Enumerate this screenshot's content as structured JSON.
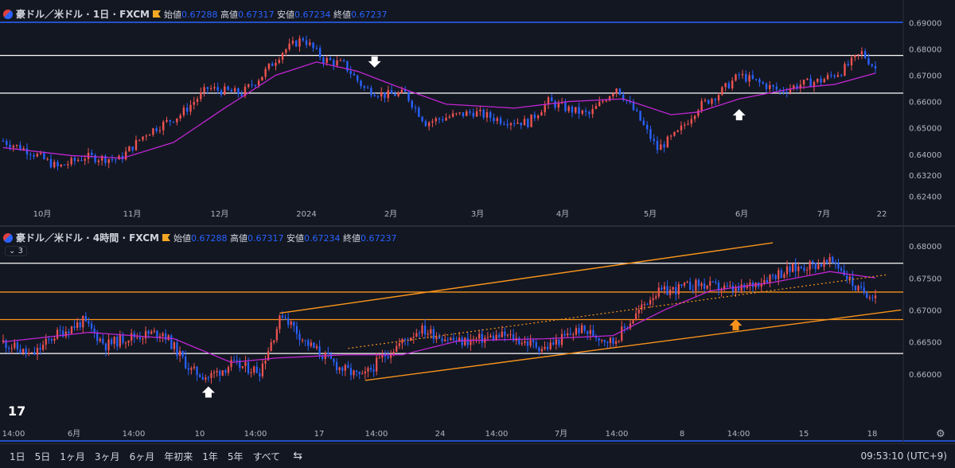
{
  "panels": [
    {
      "symbol": "豪ドル／米ドル · 1日 · FXCM",
      "labels": {
        "o": "始値",
        "h": "高値",
        "l": "安値",
        "c": "終値"
      },
      "open": "0.67288",
      "high": "0.67317",
      "low": "0.67234",
      "close": "0.67237"
    },
    {
      "symbol": "豪ドル／米ドル · 4時間 · FXCM",
      "labels": {
        "o": "始値",
        "h": "高値",
        "l": "安値",
        "c": "終値"
      },
      "open": "0.67288",
      "high": "0.67317",
      "low": "0.67234",
      "close": "0.67237"
    }
  ],
  "collapse_label": "3",
  "timeframes": [
    "1日",
    "5日",
    "1ヶ月",
    "3ヶ月",
    "6ヶ月",
    "年初来",
    "1年",
    "5年",
    "すべて"
  ],
  "clock": "09:53:10 (UTC+9)",
  "colors": {
    "up": "#ef5350",
    "down": "#2962ff",
    "ma": "#c026d3",
    "level": "#ffffff",
    "orange": "#f7931a"
  },
  "chart_data": [
    {
      "type": "candlestick",
      "title": "豪ドル／米ドル · 1日 · FXCM",
      "x_ticks": [
        "10月",
        "11月",
        "12月",
        "2024",
        "2月",
        "3月",
        "4月",
        "5月",
        "6月",
        "7月",
        "22"
      ],
      "y_ticks": [
        0.69,
        0.68,
        0.67,
        0.66,
        0.65,
        0.64,
        0.632,
        0.624
      ],
      "ylim": [
        0.6215,
        0.6925
      ],
      "levels": [
        0.6775,
        0.6632
      ],
      "close_path": [
        [
          0,
          0.645
        ],
        [
          8,
          0.641
        ],
        [
          16,
          0.635
        ],
        [
          24,
          0.639
        ],
        [
          34,
          0.638
        ],
        [
          42,
          0.648
        ],
        [
          52,
          0.655
        ],
        [
          60,
          0.665
        ],
        [
          70,
          0.663
        ],
        [
          76,
          0.67
        ],
        [
          82,
          0.679
        ],
        [
          88,
          0.684
        ],
        [
          94,
          0.676
        ],
        [
          100,
          0.674
        ],
        [
          106,
          0.665
        ],
        [
          112,
          0.6625
        ],
        [
          118,
          0.663
        ],
        [
          124,
          0.652
        ],
        [
          130,
          0.654
        ],
        [
          138,
          0.656
        ],
        [
          146,
          0.653
        ],
        [
          154,
          0.652
        ],
        [
          160,
          0.66
        ],
        [
          166,
          0.657
        ],
        [
          172,
          0.655
        ],
        [
          180,
          0.6655
        ],
        [
          186,
          0.655
        ],
        [
          192,
          0.642
        ],
        [
          198,
          0.648
        ],
        [
          204,
          0.658
        ],
        [
          210,
          0.663
        ],
        [
          216,
          0.67
        ],
        [
          222,
          0.667
        ],
        [
          228,
          0.664
        ],
        [
          234,
          0.6665
        ],
        [
          240,
          0.668
        ],
        [
          246,
          0.6715
        ],
        [
          252,
          0.6785
        ],
        [
          256,
          0.6725
        ]
      ],
      "ma_path": [
        [
          0,
          0.6425
        ],
        [
          20,
          0.6395
        ],
        [
          35,
          0.6385
        ],
        [
          50,
          0.6445
        ],
        [
          65,
          0.6575
        ],
        [
          80,
          0.67
        ],
        [
          92,
          0.675
        ],
        [
          104,
          0.6715
        ],
        [
          116,
          0.6655
        ],
        [
          130,
          0.659
        ],
        [
          150,
          0.6575
        ],
        [
          166,
          0.66
        ],
        [
          182,
          0.661
        ],
        [
          196,
          0.655
        ],
        [
          204,
          0.656
        ],
        [
          216,
          0.661
        ],
        [
          232,
          0.665
        ],
        [
          244,
          0.6665
        ],
        [
          256,
          0.6708
        ]
      ],
      "markers": [
        {
          "dir": "down",
          "x": 109,
          "y": 0.6735
        },
        {
          "dir": "up",
          "x": 216,
          "y": 0.6565
        }
      ]
    },
    {
      "type": "candlestick",
      "title": "豪ドル／米ドル · 4時間 · FXCM",
      "x_ticks": [
        "14:00",
        "6月",
        "14:00",
        "10",
        "14:00",
        "17",
        "14:00",
        "24",
        "14:00",
        "7月",
        "14:00",
        "8",
        "14:00",
        "15",
        "18"
      ],
      "y_ticks": [
        0.68,
        0.675,
        0.67,
        0.665,
        0.66
      ],
      "ylim": [
        0.6565,
        0.6815
      ],
      "levels_white": [
        0.6773,
        0.6632
      ],
      "levels_orange": [
        0.6728,
        0.6685
      ],
      "close_path": [
        [
          0,
          0.665
        ],
        [
          10,
          0.6628
        ],
        [
          18,
          0.666
        ],
        [
          28,
          0.6682
        ],
        [
          36,
          0.6645
        ],
        [
          44,
          0.6658
        ],
        [
          56,
          0.6665
        ],
        [
          66,
          0.6605
        ],
        [
          72,
          0.6595
        ],
        [
          80,
          0.6615
        ],
        [
          90,
          0.6605
        ],
        [
          98,
          0.6695
        ],
        [
          106,
          0.665
        ],
        [
          118,
          0.661
        ],
        [
          126,
          0.6594
        ],
        [
          134,
          0.663
        ],
        [
          146,
          0.667
        ],
        [
          160,
          0.665
        ],
        [
          176,
          0.666
        ],
        [
          190,
          0.664
        ],
        [
          202,
          0.667
        ],
        [
          214,
          0.665
        ],
        [
          228,
          0.6725
        ],
        [
          244,
          0.674
        ],
        [
          258,
          0.673
        ],
        [
          270,
          0.6755
        ],
        [
          282,
          0.677
        ],
        [
          292,
          0.6775
        ],
        [
          300,
          0.673
        ],
        [
          306,
          0.6725
        ]
      ],
      "ma_path": [
        [
          0,
          0.665
        ],
        [
          30,
          0.6665
        ],
        [
          60,
          0.6655
        ],
        [
          80,
          0.6618
        ],
        [
          96,
          0.6625
        ],
        [
          120,
          0.663
        ],
        [
          140,
          0.663
        ],
        [
          160,
          0.6652
        ],
        [
          190,
          0.6655
        ],
        [
          214,
          0.666
        ],
        [
          232,
          0.67
        ],
        [
          248,
          0.673
        ],
        [
          270,
          0.6743
        ],
        [
          290,
          0.676
        ],
        [
          306,
          0.675
        ]
      ],
      "channel_upper": [
        [
          97,
          0.6695
        ],
        [
          270,
          0.6805
        ]
      ],
      "channel_lower": [
        [
          127,
          0.659
        ],
        [
          315,
          0.67
        ]
      ],
      "dotted_trend": [
        [
          121,
          0.664
        ],
        [
          310,
          0.6755
        ]
      ],
      "markers": [
        {
          "dir": "up",
          "x": 72,
          "y": 0.6578,
          "color": "white"
        },
        {
          "dir": "up",
          "x": 257,
          "y": 0.6683,
          "color": "orange"
        }
      ]
    }
  ]
}
